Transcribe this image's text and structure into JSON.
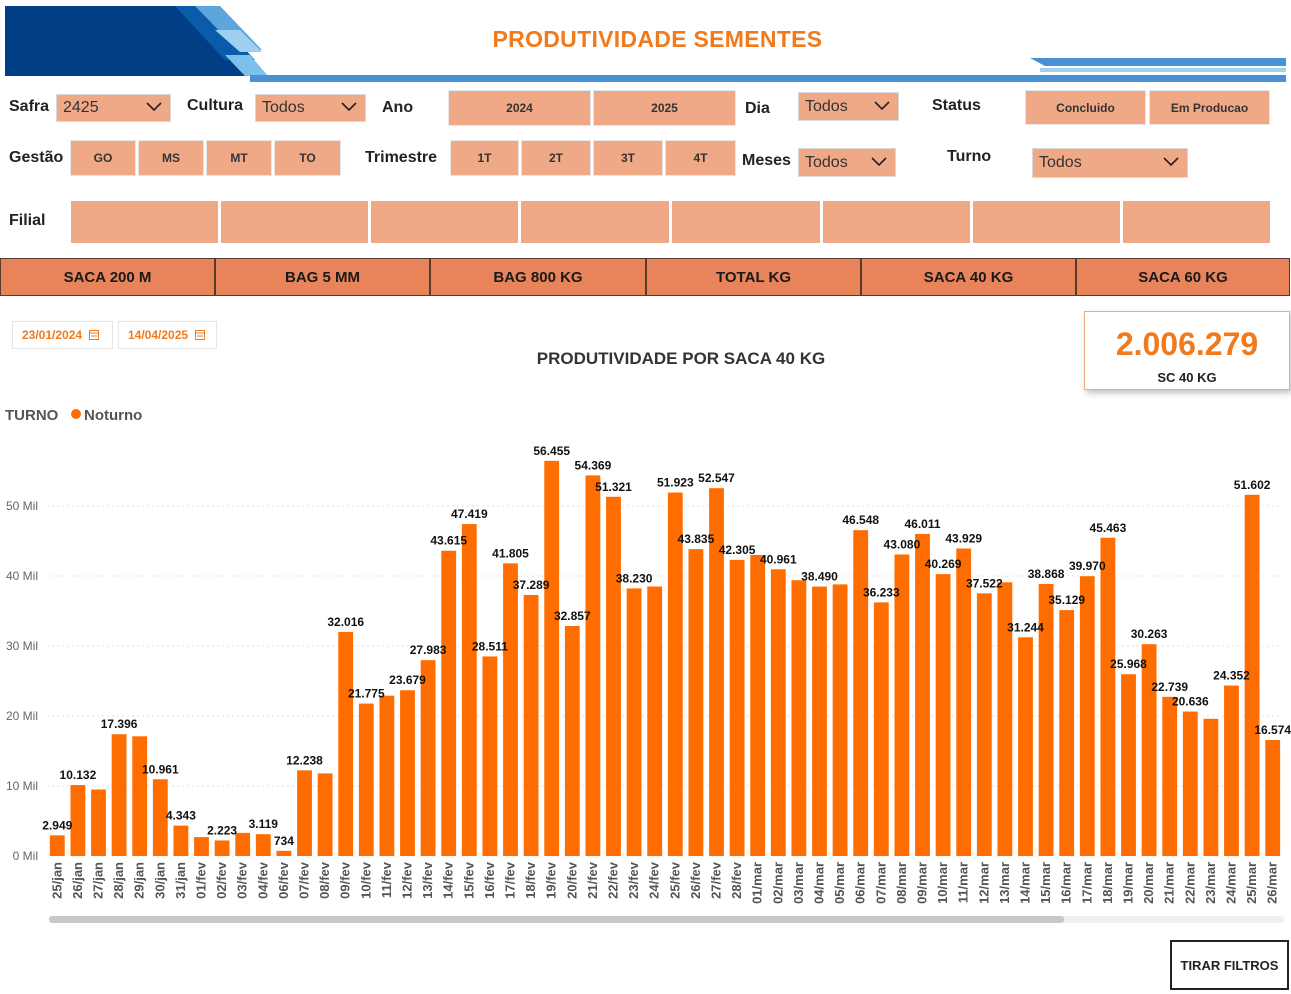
{
  "header": {
    "title": "PRODUTIVIDADE SEMENTES"
  },
  "colors": {
    "accent": "#f07a1c",
    "bar": "#ff6d00",
    "tile": "#f0a987",
    "tab": "#e8835a",
    "banner": "#003f86"
  },
  "filters": {
    "safra": {
      "label": "Safra",
      "value": "2425"
    },
    "cultura": {
      "label": "Cultura",
      "value": "Todos"
    },
    "ano": {
      "label": "Ano",
      "options": [
        "2024",
        "2025"
      ]
    },
    "dia": {
      "label": "Dia",
      "value": "Todos"
    },
    "status": {
      "label": "Status",
      "options": [
        "Concluido",
        "Em Producao"
      ]
    },
    "gestao": {
      "label": "Gestão",
      "options": [
        "GO",
        "MS",
        "MT",
        "TO"
      ]
    },
    "trimestre": {
      "label": "Trimestre",
      "options": [
        "1T",
        "2T",
        "3T",
        "4T"
      ]
    },
    "meses": {
      "label": "Meses",
      "value": "Todos"
    },
    "turno": {
      "label": "Turno",
      "value": "Todos"
    },
    "filial": {
      "label": "Filial"
    }
  },
  "tabs": [
    "SACA 200 M",
    "BAG 5 MM",
    "BAG 800 KG",
    "TOTAL KG",
    "SACA 40 KG",
    "SACA 60 KG"
  ],
  "date_range": {
    "start": "23/01/2024",
    "end": "14/04/2025"
  },
  "kpi": {
    "value": "2.006.279",
    "unit": "SC 40 KG"
  },
  "legend": {
    "title": "TURNO",
    "item": "Noturno"
  },
  "button_clear": "TIRAR FILTROS",
  "chart_data": {
    "type": "bar",
    "title": "PRODUTIVIDADE POR SACA 40 KG",
    "legend_title": "TURNO",
    "series_name": "Noturno",
    "ylim": [
      0,
      60000
    ],
    "yticks": [
      0,
      10000,
      20000,
      30000,
      40000,
      50000
    ],
    "ytick_labels": [
      "0 Mil",
      "10 Mil",
      "20 Mil",
      "30 Mil",
      "40 Mil",
      "50 Mil"
    ],
    "grid": true,
    "categories": [
      "25/jan",
      "26/jan",
      "27/jan",
      "28/jan",
      "29/jan",
      "30/jan",
      "31/jan",
      "01/fev",
      "02/fev",
      "03/fev",
      "04/fev",
      "06/fev",
      "07/fev",
      "08/fev",
      "09/fev",
      "10/fev",
      "11/fev",
      "12/fev",
      "13/fev",
      "14/fev",
      "15/fev",
      "16/fev",
      "17/fev",
      "18/fev",
      "19/fev",
      "20/fev",
      "21/fev",
      "22/fev",
      "23/fev",
      "24/fev",
      "25/fev",
      "26/fev",
      "27/fev",
      "28/fev",
      "01/mar",
      "02/mar",
      "03/mar",
      "04/mar",
      "05/mar",
      "06/mar",
      "07/mar",
      "08/mar",
      "09/mar",
      "10/mar",
      "11/mar",
      "12/mar",
      "13/mar",
      "14/mar",
      "15/mar",
      "16/mar",
      "17/mar",
      "18/mar",
      "19/mar",
      "20/mar",
      "21/mar",
      "22/mar",
      "23/mar",
      "24/mar",
      "25/mar",
      "26/mar"
    ],
    "values": [
      2949,
      10132,
      9500,
      17396,
      17100,
      10961,
      4343,
      2700,
      2223,
      3300,
      3119,
      734,
      12238,
      11800,
      32016,
      21775,
      22900,
      23679,
      27983,
      43615,
      47419,
      28511,
      41805,
      37289,
      56455,
      32857,
      54369,
      51321,
      38230,
      38500,
      51923,
      43835,
      52547,
      42305,
      43000,
      40961,
      39400,
      38490,
      38800,
      46548,
      36233,
      43080,
      46011,
      40269,
      43929,
      37522,
      39100,
      31244,
      38868,
      35129,
      39970,
      45463,
      25968,
      30263,
      22739,
      20636,
      19600,
      24352,
      51602,
      16574
    ],
    "labels": [
      "2.949",
      "10.132",
      "",
      "17.396",
      "",
      "10.961",
      "4.343",
      "",
      "2.223",
      "",
      "3.119",
      "734",
      "12.238",
      "",
      "32.016",
      "21.775",
      "",
      "23.679",
      "27.983",
      "43.615",
      "47.419",
      "28.511",
      "41.805",
      "37.289",
      "56.455",
      "32.857",
      "54.369",
      "51.321",
      "38.230",
      "",
      "51.923",
      "43.835",
      "52.547",
      "42.305",
      "",
      "40.961",
      "",
      "38.490",
      "",
      "46.548",
      "36.233",
      "43.080",
      "46.011",
      "40.269",
      "43.929",
      "37.522",
      "",
      "31.244",
      "38.868",
      "35.129",
      "39.970",
      "45.463",
      "25.968",
      "30.263",
      "22.739",
      "20.636",
      "",
      "24.352",
      "51.602",
      "16.574"
    ]
  }
}
